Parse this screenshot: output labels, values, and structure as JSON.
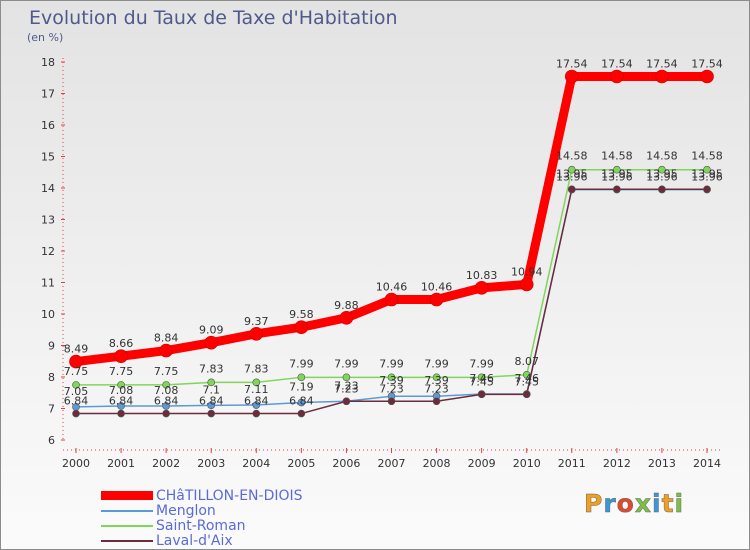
{
  "title": "Evolution du Taux de Taxe d'Habitation",
  "unit_label": "(en %)",
  "logo_text": "Proxiti",
  "logo_colors": [
    "#f0a020",
    "#3a98d8",
    "#e04a2a",
    "#7cc043",
    "#3a98d8",
    "#f0a020",
    "#7cc043"
  ],
  "chart_data": {
    "type": "line",
    "title": "Evolution du Taux de Taxe d'Habitation",
    "ylabel": "(en %)",
    "xlabel": "",
    "ylim": [
      6,
      18
    ],
    "yticks": [
      6,
      7,
      8,
      9,
      10,
      11,
      12,
      13,
      14,
      15,
      16,
      17,
      18
    ],
    "grid": false,
    "legend_position": "bottom-left",
    "x": [
      "2000",
      "2001",
      "2002",
      "2003",
      "2004",
      "2005",
      "2006",
      "2007",
      "2008",
      "2009",
      "2010",
      "2011",
      "2012",
      "2013",
      "2014"
    ],
    "series": [
      {
        "name": "CHâTILLON-EN-DIOIS",
        "color": "#ff0000",
        "values": [
          8.49,
          8.66,
          8.84,
          9.09,
          9.37,
          9.58,
          9.88,
          10.46,
          10.46,
          10.83,
          10.94,
          17.54,
          17.54,
          17.54,
          17.54
        ],
        "labels": [
          "8.49",
          "8.66",
          "8.84",
          "9.09",
          "9.37",
          "9.58",
          "9.88",
          "10.46",
          "10.46",
          "10.83",
          "10.94",
          "17.54",
          "17.54",
          "17.54",
          "17.54"
        ]
      },
      {
        "name": "Menglon",
        "color": "#5b9bd5",
        "values": [
          7.05,
          7.08,
          7.08,
          7.1,
          7.11,
          7.19,
          7.23,
          7.39,
          7.39,
          7.46,
          7.46,
          13.95,
          13.95,
          13.95,
          13.95
        ],
        "labels": [
          "7.05",
          "7.08",
          "7.08",
          "7.1",
          "7.11",
          "7.19",
          "7.23",
          "7.39",
          "7.39",
          "7.46",
          "7.46",
          "13.95",
          "13.95",
          "13.95",
          "13.95"
        ]
      },
      {
        "name": "Saint-Roman",
        "color": "#7fd65b",
        "values": [
          7.75,
          7.75,
          7.75,
          7.83,
          7.83,
          7.99,
          7.99,
          7.99,
          7.99,
          7.99,
          8.07,
          14.58,
          14.58,
          14.58,
          14.58
        ],
        "labels": [
          "7.75",
          "7.75",
          "7.75",
          "7.83",
          "7.83",
          "7.99",
          "7.99",
          "7.99",
          "7.99",
          "7.99",
          "8.07",
          "14.58",
          "14.58",
          "14.58",
          "14.58"
        ]
      },
      {
        "name": "Laval-d'Aix",
        "color": "#6b2c3c",
        "values": [
          6.84,
          6.84,
          6.84,
          6.84,
          6.84,
          6.84,
          7.23,
          7.23,
          7.23,
          7.45,
          7.45,
          13.96,
          13.96,
          13.96,
          13.96
        ],
        "labels": [
          "6.84",
          "6.84",
          "6.84",
          "6.84",
          "6.84",
          "6.84",
          "7.23",
          "7.23",
          "7.23",
          "7.45",
          "7.45",
          "13.96",
          "13.96",
          "13.96",
          "13.96"
        ]
      }
    ]
  }
}
